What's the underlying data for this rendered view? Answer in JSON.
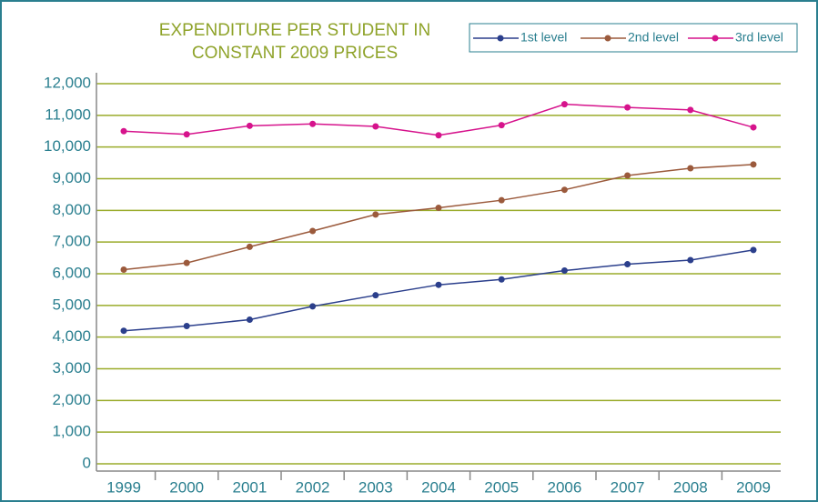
{
  "chart_data": {
    "type": "line",
    "title": [
      "EXPENDITURE PER STUDENT IN",
      "CONSTANT 2009 PRICES"
    ],
    "categories": [
      "1999",
      "2000",
      "2001",
      "2002",
      "2003",
      "2004",
      "2005",
      "2006",
      "2007",
      "2008",
      "2009"
    ],
    "series": [
      {
        "name": "1st level",
        "color": "#2b3f8c",
        "values": [
          4200,
          4350,
          4550,
          4970,
          5320,
          5650,
          5820,
          6100,
          6300,
          6430,
          6750
        ]
      },
      {
        "name": "2nd level",
        "color": "#9b5a3c",
        "values": [
          6130,
          6340,
          6850,
          7350,
          7870,
          8080,
          8320,
          8650,
          9100,
          9330,
          9450
        ]
      },
      {
        "name": "3rd level",
        "color": "#d6138c",
        "values": [
          10500,
          10400,
          10670,
          10730,
          10650,
          10370,
          10690,
          11350,
          11250,
          11170,
          10620
        ]
      }
    ],
    "ylim": [
      0,
      12000
    ],
    "yticks": [
      0,
      {
        "value": 1000,
        "label": "1,000"
      },
      {
        "value": 2000,
        "label": "2,000"
      },
      {
        "value": 3000,
        "label": "3,000"
      },
      {
        "value": 4000,
        "label": "4,000"
      },
      {
        "value": 5000,
        "label": "5,000"
      },
      {
        "value": 6000,
        "label": "6,000"
      },
      {
        "value": 7000,
        "label": "7,000"
      },
      {
        "value": 8000,
        "label": "8,000"
      },
      {
        "value": 9000,
        "label": "9,000"
      },
      {
        "value": 10000,
        "label": "10,000"
      },
      {
        "value": 11000,
        "label": "11,000"
      },
      {
        "value": 12000,
        "label": "12,000"
      }
    ],
    "grid": true,
    "grid_color": "#9aab2a",
    "legend": "top-right"
  }
}
